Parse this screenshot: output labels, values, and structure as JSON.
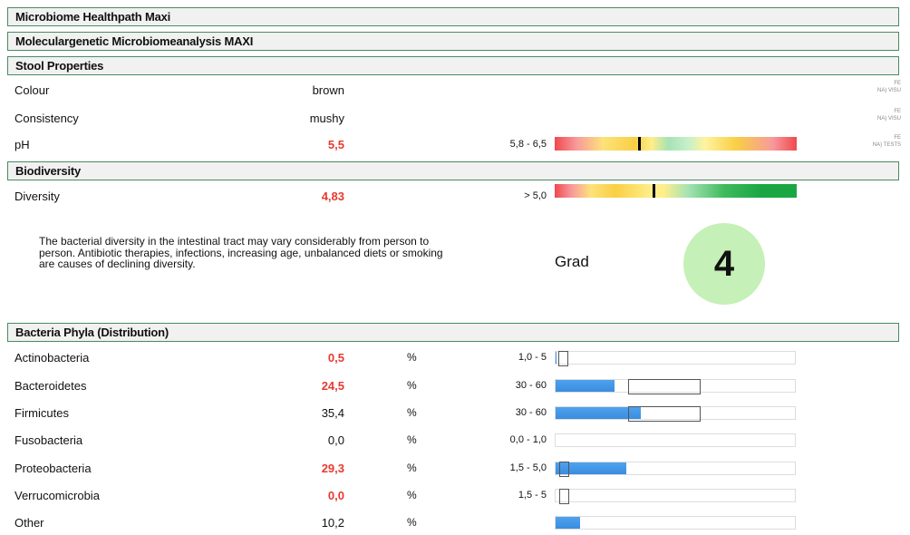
{
  "headers": {
    "h1": "Microbiome Healthpath Maxi",
    "h2": "Moleculargenetic Microbiomeanalysis MAXI",
    "h3": "Stool Properties",
    "h4": "Biodiversity",
    "h5": "Bacteria Phyla (Distribution)"
  },
  "stool": {
    "colour": {
      "label": "Colour",
      "value": "brown",
      "tag1": "FE",
      "tag2": "NA) VISU"
    },
    "consistency": {
      "label": "Consistency",
      "value": "mushy",
      "tag1": "FE",
      "tag2": "NA) VISU"
    },
    "ph": {
      "label": "pH",
      "value": "5,5",
      "ref": "5,8 - 6,5",
      "tag1": "FE",
      "tag2": "NA) TESTS",
      "marker_fraction": 0.35
    }
  },
  "biodiversity": {
    "diversity": {
      "label": "Diversity",
      "value": "4,83",
      "ref": "> 5,0",
      "marker_fraction": 0.41
    },
    "description": "The bacterial diversity in the intestinal tract may vary considerably from person to person. Antibiotic therapies, infections, increasing age, unbalanced diets or smoking are causes of declining diversity.",
    "grade_label": "Grad",
    "grade_value": "4",
    "grade_color": "#c5f0b7"
  },
  "phyla": [
    {
      "label": "Actinobacteria",
      "value": "0,5",
      "unit": "%",
      "ref": "1,0 - 5",
      "flag": true,
      "fill": 0.005,
      "range": [
        0.01,
        0.05
      ]
    },
    {
      "label": "Bacteroidetes",
      "value": "24,5",
      "unit": "%",
      "ref": "30 - 60",
      "flag": true,
      "fill": 0.245,
      "range": [
        0.3,
        0.6
      ]
    },
    {
      "label": "Firmicutes",
      "value": "35,4",
      "unit": "%",
      "ref": "30 - 60",
      "flag": false,
      "fill": 0.354,
      "range": [
        0.3,
        0.6
      ]
    },
    {
      "label": "Fusobacteria",
      "value": "0,0",
      "unit": "%",
      "ref": "0,0 - 1,0",
      "flag": false,
      "fill": 0.0,
      "range": null
    },
    {
      "label": "Proteobacteria",
      "value": "29,3",
      "unit": "%",
      "ref": "1,5 - 5,0",
      "flag": true,
      "fill": 0.293,
      "range": [
        0.015,
        0.05
      ]
    },
    {
      "label": "Verrucomicrobia",
      "value": "0,0",
      "unit": "%",
      "ref": "1,5 - 5",
      "flag": true,
      "fill": 0.0,
      "range": [
        0.015,
        0.05
      ]
    },
    {
      "label": "Other",
      "value": "10,2",
      "unit": "%",
      "ref": "",
      "flag": false,
      "fill": 0.102,
      "range": null
    }
  ],
  "colors": {
    "flag_red": "#e8392f",
    "bar_blue": "#3a8de0",
    "header_border": "#4a8a63"
  }
}
